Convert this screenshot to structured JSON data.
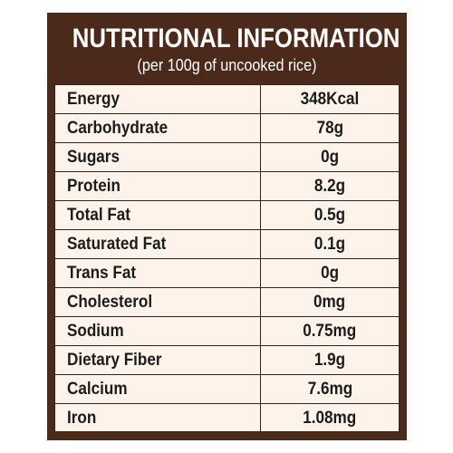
{
  "header": {
    "title": "NUTRITIONAL INFORMATION",
    "subtitle": "(per 100g of uncooked rice)"
  },
  "colors": {
    "panel_brown": "#4b2a1b",
    "table_cream": "#fdf3ea",
    "text_dark": "#1b1b1b",
    "header_text": "#ffffff"
  },
  "nutrients": [
    {
      "name": "Energy",
      "value": "348Kcal"
    },
    {
      "name": "Carbohydrate",
      "value": "78g"
    },
    {
      "name": "Sugars",
      "value": "0g"
    },
    {
      "name": "Protein",
      "value": "8.2g"
    },
    {
      "name": "Total Fat",
      "value": "0.5g"
    },
    {
      "name": "Saturated Fat",
      "value": "0.1g"
    },
    {
      "name": "Trans Fat",
      "value": "0g"
    },
    {
      "name": "Cholesterol",
      "value": "0mg"
    },
    {
      "name": "Sodium",
      "value": "0.75mg"
    },
    {
      "name": "Dietary Fiber",
      "value": "1.9g"
    },
    {
      "name": "Calcium",
      "value": "7.6mg"
    },
    {
      "name": "Iron",
      "value": "1.08mg"
    }
  ]
}
